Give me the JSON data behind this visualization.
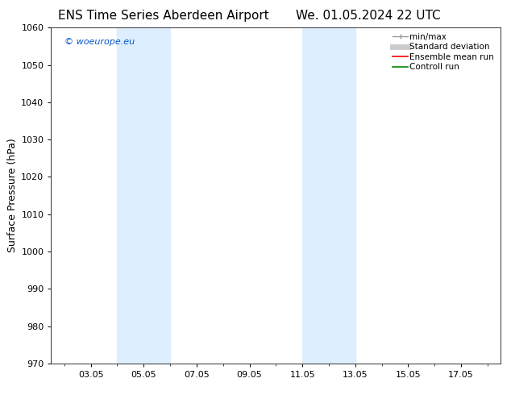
{
  "title_left": "ENS Time Series Aberdeen Airport",
  "title_right": "We. 01.05.2024 22 UTC",
  "ylabel": "Surface Pressure (hPa)",
  "ylim": [
    970,
    1060
  ],
  "yticks": [
    970,
    980,
    990,
    1000,
    1010,
    1020,
    1030,
    1040,
    1050,
    1060
  ],
  "xtick_labels": [
    "03.05",
    "05.05",
    "07.05",
    "09.05",
    "11.05",
    "13.05",
    "15.05",
    "17.05"
  ],
  "xtick_positions": [
    2,
    4,
    6,
    8,
    10,
    12,
    14,
    16
  ],
  "xlim": [
    0.5,
    17.5
  ],
  "shaded_bands": [
    {
      "x_start": 3.0,
      "x_end": 5.0
    },
    {
      "x_start": 10.0,
      "x_end": 12.0
    }
  ],
  "shaded_color": "#ddeeff",
  "background_color": "#ffffff",
  "watermark_text": "© woeurope.eu",
  "watermark_color": "#0055cc",
  "legend_items": [
    {
      "label": "min/max",
      "color": "#999999",
      "lw": 1.0
    },
    {
      "label": "Standard deviation",
      "color": "#cccccc",
      "lw": 5
    },
    {
      "label": "Ensemble mean run",
      "color": "#ff0000",
      "lw": 1.2
    },
    {
      "label": "Controll run",
      "color": "#008800",
      "lw": 1.2
    }
  ],
  "title_fontsize": 11,
  "tick_fontsize": 8,
  "ylabel_fontsize": 9,
  "legend_fontsize": 7.5,
  "watermark_fontsize": 8
}
